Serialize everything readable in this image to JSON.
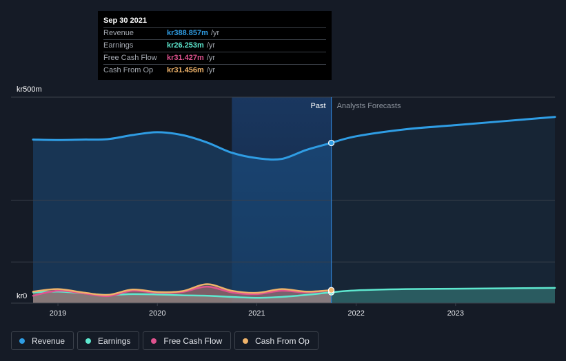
{
  "tooltip": {
    "date": "Sep 30 2021",
    "rows": [
      {
        "label": "Revenue",
        "value": "kr388.857m",
        "unit": "/yr",
        "color": "#2f9de4"
      },
      {
        "label": "Earnings",
        "value": "kr26.253m",
        "unit": "/yr",
        "color": "#5ee8cf"
      },
      {
        "label": "Free Cash Flow",
        "value": "kr31.427m",
        "unit": "/yr",
        "color": "#e0538f"
      },
      {
        "label": "Cash From Op",
        "value": "kr31.456m",
        "unit": "/yr",
        "color": "#efb36a"
      }
    ]
  },
  "legend": [
    {
      "label": "Revenue",
      "color": "#2f9de4"
    },
    {
      "label": "Earnings",
      "color": "#5ee8cf"
    },
    {
      "label": "Free Cash Flow",
      "color": "#e0538f"
    },
    {
      "label": "Cash From Op",
      "color": "#efb36a"
    }
  ],
  "chart_data": {
    "type": "area",
    "ylabel_top": "kr500m",
    "ylabel_bottom": "kr0",
    "ylim": [
      0,
      500
    ],
    "xlim": [
      2018.75,
      2024.0
    ],
    "xticks": [
      {
        "value": 2019,
        "label": "2019"
      },
      {
        "value": 2020,
        "label": "2020"
      },
      {
        "value": 2021,
        "label": "2021"
      },
      {
        "value": 2022,
        "label": "2022"
      },
      {
        "value": 2023,
        "label": "2023"
      }
    ],
    "past_label": "Past",
    "forecast_label": "Analysts Forecasts",
    "divider_x": 2021.75,
    "highlight_start": 2020.75,
    "series": [
      {
        "name": "Revenue",
        "color": "#2f9de4",
        "x": [
          2018.75,
          2019.0,
          2019.25,
          2019.5,
          2019.75,
          2020.0,
          2020.25,
          2020.5,
          2020.75,
          2021.0,
          2021.25,
          2021.5,
          2021.75
        ],
        "values": [
          397,
          396,
          397,
          398,
          408,
          415,
          408,
          390,
          365,
          352,
          350,
          372,
          388.9
        ]
      },
      {
        "name": "Revenue forecast",
        "color": "#2f9de4",
        "forecast": true,
        "x": [
          2021.75,
          2022.0,
          2022.5,
          2023.0,
          2023.5,
          2024.0
        ],
        "values": [
          388.9,
          405,
          422,
          432,
          442,
          452
        ]
      },
      {
        "name": "Earnings",
        "color": "#5ee8cf",
        "x": [
          2018.75,
          2019.0,
          2019.25,
          2019.5,
          2019.75,
          2020.0,
          2020.25,
          2020.5,
          2020.75,
          2021.0,
          2021.25,
          2021.5,
          2021.75
        ],
        "values": [
          26,
          28,
          24,
          20,
          22,
          21,
          19,
          18,
          15,
          13,
          15,
          20,
          26.3
        ]
      },
      {
        "name": "Earnings forecast",
        "color": "#5ee8cf",
        "forecast": true,
        "x": [
          2021.75,
          2022.0,
          2022.5,
          2023.0,
          2023.5,
          2024.0
        ],
        "values": [
          26.3,
          31,
          34,
          35,
          36,
          37
        ]
      },
      {
        "name": "Free Cash Flow",
        "color": "#e0538f",
        "x": [
          2018.75,
          2019.0,
          2019.25,
          2019.5,
          2019.75,
          2020.0,
          2020.25,
          2020.5,
          2020.75,
          2021.0,
          2021.25,
          2021.5,
          2021.75
        ],
        "values": [
          18,
          30,
          24,
          17,
          30,
          25,
          27,
          40,
          26,
          22,
          30,
          26,
          31.4
        ]
      },
      {
        "name": "Cash From Op",
        "color": "#efb36a",
        "x": [
          2018.75,
          2019.0,
          2019.25,
          2019.5,
          2019.75,
          2020.0,
          2020.25,
          2020.5,
          2020.75,
          2021.0,
          2021.25,
          2021.5,
          2021.75
        ],
        "values": [
          28,
          34,
          26,
          20,
          33,
          27,
          29,
          46,
          30,
          25,
          34,
          28,
          31.5
        ]
      }
    ]
  }
}
